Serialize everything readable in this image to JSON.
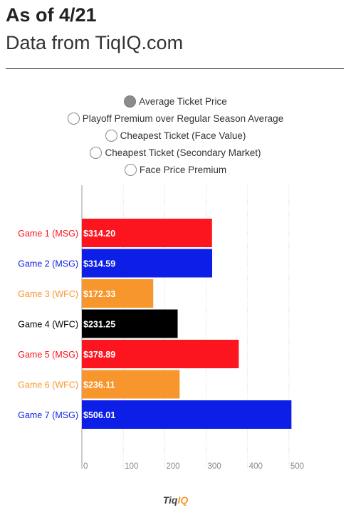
{
  "header": {
    "title": "As of 4/21",
    "subtitle": "Data from TiqIQ.com"
  },
  "options": [
    {
      "label": "Average Ticket Price",
      "selected": true
    },
    {
      "label": "Playoff Premium over Regular Season Average",
      "selected": false
    },
    {
      "label": "Cheapest Ticket (Face Value)",
      "selected": false
    },
    {
      "label": "Cheapest Ticket (Secondary Market)",
      "selected": false
    },
    {
      "label": "Face Price Premium",
      "selected": false
    }
  ],
  "chart_data": {
    "type": "bar",
    "orientation": "horizontal",
    "categories": [
      "Game 1 (MSG)",
      "Game 2 (MSG)",
      "Game 3 (WFC)",
      "Game 4 (WFC)",
      "Game 5 (MSG)",
      "Game 6 (WFC)",
      "Game 7 (MSG)"
    ],
    "values": [
      314.2,
      314.59,
      172.33,
      231.25,
      378.89,
      236.11,
      506.01
    ],
    "value_labels": [
      "$314.20",
      "$314.59",
      "$172.33",
      "$231.25",
      "$378.89",
      "$236.11",
      "$506.01"
    ],
    "colors": [
      "#fc141e",
      "#0d1ee6",
      "#f7962c",
      "#000000",
      "#fc141e",
      "#f7962c",
      "#0d1ee6"
    ],
    "xlim": [
      0,
      500
    ],
    "xticks": [
      0,
      100,
      200,
      300,
      400,
      500
    ],
    "grid": true
  },
  "footer": {
    "logo_part1": "Tiq",
    "logo_part2": "IQ"
  }
}
